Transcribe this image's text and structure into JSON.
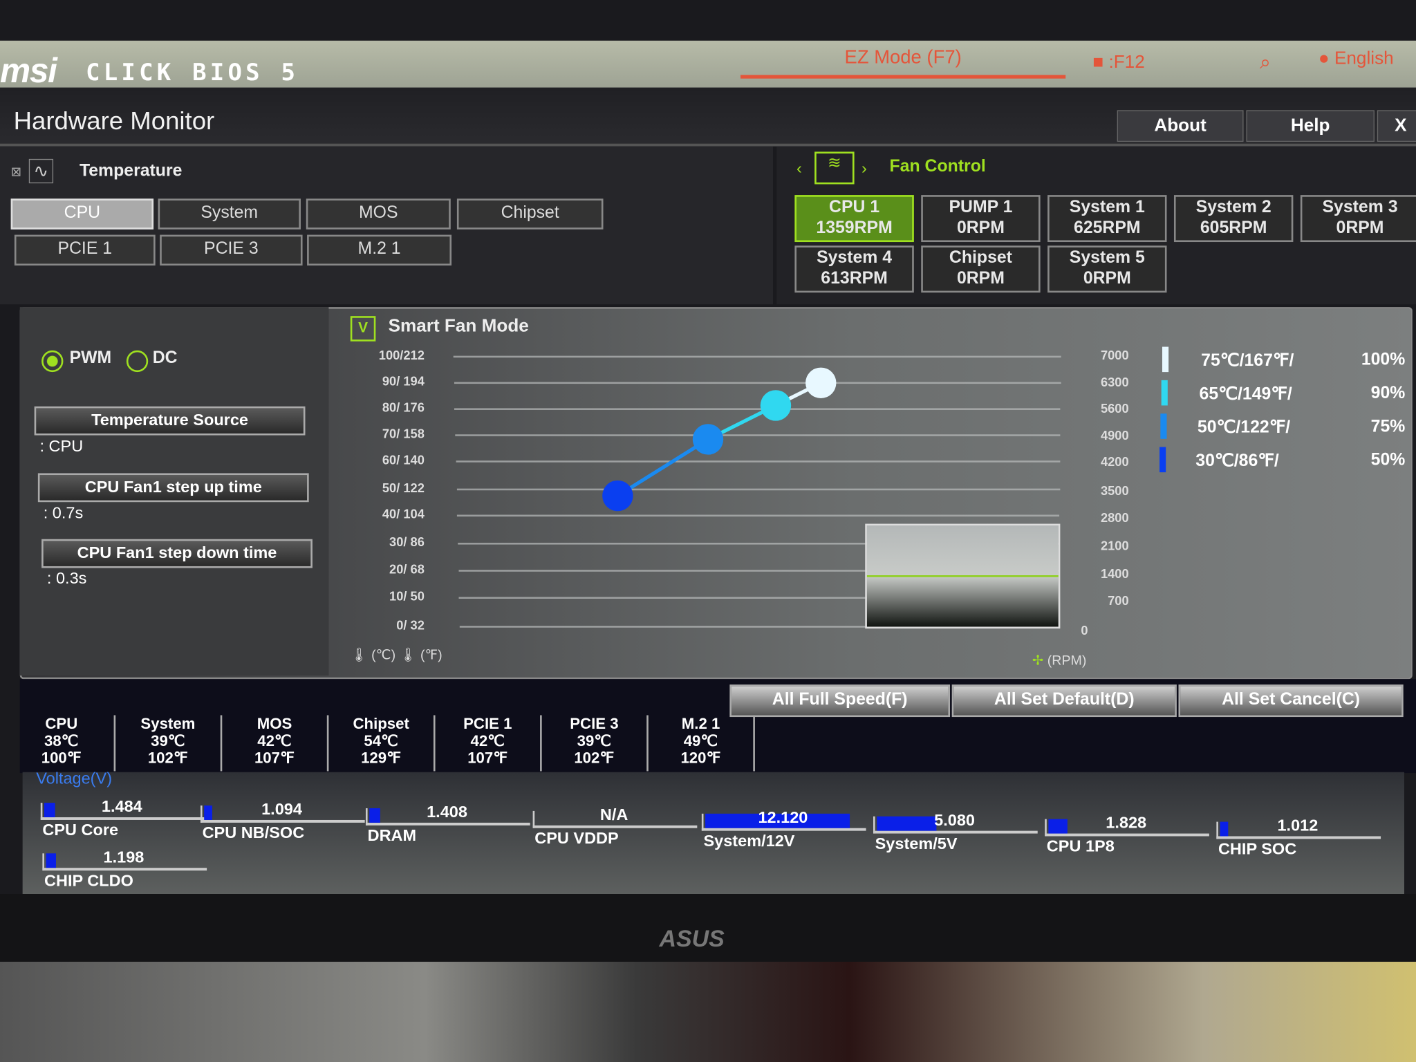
{
  "header": {
    "logo": "msi",
    "product": "CLICK BIOS 5",
    "ez_mode": "EZ Mode (F7)",
    "screenshot_key": "F12",
    "language": "English"
  },
  "titlebar": {
    "title": "Hardware Monitor",
    "about": "About",
    "help": "Help",
    "close": "X"
  },
  "temperature": {
    "title": "Temperature",
    "sources": [
      {
        "label": "CPU",
        "selected": true
      },
      {
        "label": "System"
      },
      {
        "label": "MOS"
      },
      {
        "label": "Chipset"
      },
      {
        "label": "PCIE 1"
      },
      {
        "label": "PCIE 3"
      },
      {
        "label": "M.2 1"
      }
    ]
  },
  "fan_control": {
    "title": "Fan Control",
    "fans": [
      {
        "name": "CPU 1",
        "rpm": "1359RPM",
        "selected": true
      },
      {
        "name": "PUMP 1",
        "rpm": "0RPM"
      },
      {
        "name": "System 1",
        "rpm": "625RPM"
      },
      {
        "name": "System 2",
        "rpm": "605RPM"
      },
      {
        "name": "System 3",
        "rpm": "0RPM"
      },
      {
        "name": "System 4",
        "rpm": "613RPM"
      },
      {
        "name": "Chipset",
        "rpm": "0RPM"
      },
      {
        "name": "System 5",
        "rpm": "0RPM"
      }
    ]
  },
  "controls": {
    "pwm": "PWM",
    "dc": "DC",
    "mode_selected": "PWM",
    "temp_source_label": "Temperature Source",
    "temp_source_value": ": CPU",
    "step_up_label": "CPU Fan1 step up time",
    "step_up_value": ": 0.7s",
    "step_down_label": "CPU Fan1 step down time",
    "step_down_value": ": 0.3s"
  },
  "smart_fan": {
    "label": "Smart Fan Mode",
    "checked": true,
    "check_glyph": "V",
    "unit_c": "(℃)",
    "unit_f": "(℉)",
    "unit_rpm": "(RPM)"
  },
  "chart_data": {
    "type": "line",
    "left_ticks": [
      "100/212",
      "90/ 194",
      "80/ 176",
      "70/ 158",
      "60/ 140",
      "50/ 122",
      "40/ 104",
      "30/  86",
      "20/  68",
      "10/  50",
      "0/  32"
    ],
    "right_ticks": [
      "7000",
      "6300",
      "5600",
      "4900",
      "4200",
      "3500",
      "2800",
      "2100",
      "1400",
      "700",
      "0"
    ],
    "points": [
      {
        "temp_c": 30,
        "fan_pct": 50
      },
      {
        "temp_c": 50,
        "fan_pct": 75
      },
      {
        "temp_c": 65,
        "fan_pct": 90
      },
      {
        "temp_c": 75,
        "fan_pct": 100
      }
    ],
    "point_colors": [
      "#0a3ff0",
      "#1a8af0",
      "#30d8f0",
      "#e8f8ff"
    ],
    "legend": [
      {
        "temp": "75℃/167℉/",
        "pct": "100%"
      },
      {
        "temp": "65℃/149℉/",
        "pct": "90%"
      },
      {
        "temp": "50℃/122℉/",
        "pct": "75%"
      },
      {
        "temp": "30℃/86℉/",
        "pct": "50%"
      }
    ]
  },
  "actions": {
    "full_speed": "All Full Speed(F)",
    "set_default": "All Set Default(D)",
    "set_cancel": "All Set Cancel(C)"
  },
  "readouts": [
    {
      "name": "CPU",
      "c": "38℃",
      "f": "100℉"
    },
    {
      "name": "System",
      "c": "39℃",
      "f": "102℉"
    },
    {
      "name": "MOS",
      "c": "42℃",
      "f": "107℉"
    },
    {
      "name": "Chipset",
      "c": "54℃",
      "f": "129℉"
    },
    {
      "name": "PCIE 1",
      "c": "42℃",
      "f": "107℉"
    },
    {
      "name": "PCIE 3",
      "c": "39℃",
      "f": "102℉"
    },
    {
      "name": "M.2 1",
      "c": "49℃",
      "f": "120℉"
    }
  ],
  "voltage": {
    "title": "Voltage(V)",
    "items": [
      {
        "name": "CPU Core",
        "value": "1.484",
        "fill_pct": 7
      },
      {
        "name": "CPU NB/SOC",
        "value": "1.094",
        "fill_pct": 5
      },
      {
        "name": "DRAM",
        "value": "1.408",
        "fill_pct": 7
      },
      {
        "name": "CPU VDDP",
        "value": "N/A",
        "fill_pct": 0
      },
      {
        "name": "System/12V",
        "value": "12.120",
        "fill_pct": 90
      },
      {
        "name": "System/5V",
        "value": "5.080",
        "fill_pct": 37
      },
      {
        "name": "CPU 1P8",
        "value": "1.828",
        "fill_pct": 12
      },
      {
        "name": "CHIP SOC",
        "value": "1.012",
        "fill_pct": 5
      },
      {
        "name": "CHIP CLDO",
        "value": "1.198",
        "fill_pct": 6
      }
    ]
  },
  "monitor_brand": "ASUS",
  "colors": {
    "accent_green": "#9fe020",
    "accent_red": "#e4553a",
    "voltage_bar": "#0a1fe8",
    "voltage_title": "#3a7cf0"
  }
}
